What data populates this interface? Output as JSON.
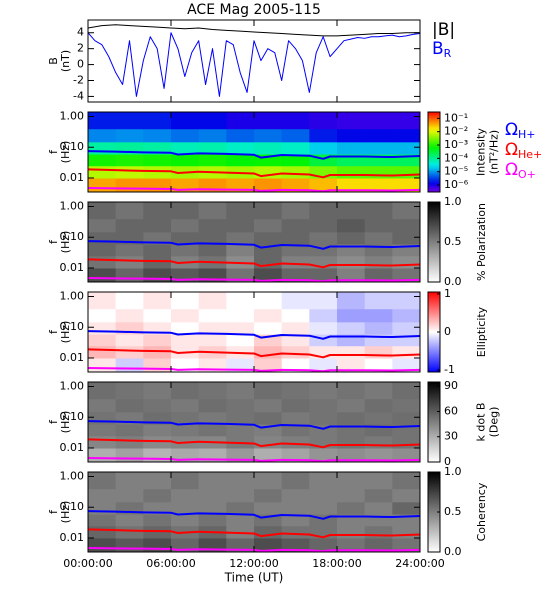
{
  "chart_data": [
    {
      "type": "line",
      "title": "ACE Mag 2005-115",
      "ylabel": [
        "B",
        "(nT)"
      ],
      "ylim": [
        -4.7,
        5.6
      ],
      "yticks": [
        -4,
        -2,
        0,
        2,
        4
      ],
      "series": [
        {
          "name": "|B|",
          "color": "#000000",
          "x": [
            0,
            1,
            2,
            3,
            4,
            5,
            6,
            7,
            8,
            9,
            10,
            11,
            12,
            13,
            14,
            15,
            16,
            17,
            18,
            19,
            20,
            21,
            22,
            23,
            24
          ],
          "values": [
            4.6,
            4.9,
            5.0,
            4.9,
            4.8,
            4.7,
            4.6,
            4.5,
            4.6,
            4.4,
            4.3,
            4.2,
            4.1,
            4.0,
            3.9,
            3.8,
            3.7,
            3.6,
            3.6,
            3.7,
            3.8,
            3.9,
            3.9,
            4.0,
            4.0
          ]
        },
        {
          "name": "B",
          "name_sub": "R",
          "color": "#0000ff",
          "x": [
            0,
            0.5,
            1,
            1.5,
            2,
            2.5,
            3,
            3.5,
            4,
            4.5,
            5,
            5.5,
            6,
            6.5,
            7,
            7.5,
            8,
            8.5,
            9,
            9.5,
            10,
            10.5,
            11,
            11.5,
            12,
            12.5,
            13,
            13.5,
            14,
            14.5,
            15,
            15.5,
            16,
            16.5,
            17,
            17.5,
            18,
            18.5,
            19,
            19.5,
            20,
            20.5,
            21,
            21.5,
            22,
            22.5,
            23,
            23.5,
            24
          ],
          "values": [
            4.0,
            3.0,
            2.5,
            1.0,
            -1.0,
            -2.5,
            3.0,
            -4.0,
            0.5,
            3.5,
            2.0,
            -3.0,
            4.0,
            2.0,
            -1.5,
            1.5,
            3.0,
            -2.5,
            2.0,
            -4.0,
            3.0,
            2.5,
            -1.0,
            -3.5,
            3.0,
            0.5,
            2.0,
            1.5,
            -2.0,
            3.0,
            2.0,
            0.5,
            -3.5,
            1.5,
            3.5,
            1.0,
            2.0,
            3.0,
            3.2,
            3.4,
            3.3,
            3.5,
            3.5,
            3.6,
            3.7,
            3.5,
            3.6,
            3.8,
            3.9
          ]
        }
      ]
    },
    {
      "type": "spectrogram",
      "ylabel": [
        "f",
        "(Hz)"
      ],
      "ylog": true,
      "ylim": [
        0.0035,
        1.4
      ],
      "yticks": [
        {
          "value": 1,
          "label": "1.00"
        },
        {
          "value": 0.1,
          "label": "0.10"
        },
        0.01
      ],
      "time_bins": [
        0,
        2,
        4,
        6,
        8,
        10,
        12,
        14,
        16,
        18,
        20,
        22,
        24
      ],
      "freq_bins": [
        0.0035,
        0.01,
        0.025,
        0.06,
        0.15,
        0.4,
        1.4
      ],
      "colormap": "rainbow",
      "zlog": true,
      "zlim": [
        3e-07,
        0.3
      ],
      "zticks": [
        {
          "value": 0.1,
          "label": "10⁻¹"
        },
        {
          "value": 0.01,
          "label": "10⁻²"
        },
        {
          "value": 0.001,
          "label": "10⁻³"
        },
        {
          "value": 0.0001,
          "label": "10⁻⁴"
        },
        {
          "value": 1e-05,
          "label": "10⁻⁵"
        },
        {
          "value": 1e-06,
          "label": "10⁻⁶"
        }
      ],
      "zlabel": [
        "Intensity",
        "(nT²/Hz)"
      ],
      "z": [
        [
          0.04,
          0.05,
          0.05,
          0.04,
          0.05,
          0.04,
          0.05,
          0.04,
          0.03,
          0.02,
          0.02,
          0.02
        ],
        [
          0.006,
          0.007,
          0.006,
          0.005,
          0.006,
          0.005,
          0.006,
          0.005,
          0.003,
          0.002,
          0.002,
          0.002
        ],
        [
          0.0008,
          0.0009,
          0.0008,
          0.0007,
          0.0008,
          0.0006,
          0.0007,
          0.0006,
          0.0003,
          0.0002,
          0.0002,
          0.0002
        ],
        [
          8e-05,
          9e-05,
          8e-05,
          6e-05,
          7e-05,
          5e-05,
          6e-05,
          5e-05,
          2e-05,
          1.5e-05,
          1.5e-05,
          1.5e-05
        ],
        [
          8e-06,
          9e-06,
          8e-06,
          6e-06,
          7e-06,
          5e-06,
          6e-06,
          5e-06,
          2e-06,
          1.5e-06,
          1.5e-06,
          1.5e-06
        ],
        [
          2e-06,
          2e-06,
          2e-06,
          1.5e-06,
          1.5e-06,
          1e-06,
          1e-06,
          1e-06,
          8e-07,
          7e-07,
          7e-07,
          7e-07
        ]
      ],
      "series": [
        {
          "name": "Ω",
          "name_sub": "H+",
          "color": "#0000ff",
          "x": [
            0,
            2,
            4,
            6,
            6.5,
            8,
            10,
            12,
            12.5,
            14,
            16,
            17,
            17.5,
            18,
            20,
            22,
            24
          ],
          "values": [
            0.075,
            0.072,
            0.068,
            0.066,
            0.058,
            0.063,
            0.061,
            0.057,
            0.046,
            0.056,
            0.053,
            0.042,
            0.05,
            0.05,
            0.05,
            0.048,
            0.052
          ]
        },
        {
          "name": "Ω",
          "name_sub": "He+",
          "color": "#ff0000",
          "x": [
            0,
            2,
            4,
            6,
            6.5,
            8,
            10,
            12,
            12.5,
            14,
            16,
            17,
            17.5,
            18,
            20,
            22,
            24
          ],
          "values": [
            0.019,
            0.018,
            0.017,
            0.0165,
            0.0145,
            0.016,
            0.015,
            0.014,
            0.0115,
            0.014,
            0.013,
            0.0105,
            0.0125,
            0.0125,
            0.0125,
            0.012,
            0.013
          ]
        },
        {
          "name": "Ω",
          "name_sub": "O+",
          "color": "#ff00ff",
          "x": [
            0,
            2,
            4,
            6,
            6.5,
            8,
            10,
            12,
            12.5,
            14,
            16,
            17,
            17.5,
            18,
            20,
            22,
            24
          ],
          "values": [
            0.0047,
            0.0046,
            0.0045,
            0.0044,
            0.0041,
            0.0043,
            0.0042,
            0.0041,
            0.0038,
            0.0041,
            0.004,
            0.0037,
            0.004,
            0.004,
            0.004,
            0.0039,
            0.0041
          ]
        }
      ]
    },
    {
      "type": "spectrogram",
      "ylabel": [
        "f",
        "(Hz)"
      ],
      "ylog": true,
      "ylim": [
        0.0035,
        1.4
      ],
      "yticks": [
        {
          "value": 1,
          "label": "1.00"
        },
        {
          "value": 0.1,
          "label": "0.10"
        },
        0.01
      ],
      "time_bins": [
        0,
        2,
        4,
        6,
        8,
        10,
        12,
        14,
        16,
        18,
        20,
        22,
        24
      ],
      "freq_bins": [
        0.0035,
        0.01,
        0.025,
        0.06,
        0.15,
        0.4,
        1.4
      ],
      "colormap": "gray",
      "zlim": [
        0,
        1
      ],
      "zticks": [
        {
          "value": 0,
          "label": "0.0"
        },
        0.5,
        {
          "value": 1,
          "label": "1.0"
        }
      ],
      "zlabel": [
        "% Polarization"
      ],
      "z": [
        [
          0.7,
          0.6,
          0.7,
          0.65,
          0.7,
          0.55,
          0.7,
          0.6,
          0.6,
          0.5,
          0.6,
          0.55
        ],
        [
          0.55,
          0.5,
          0.6,
          0.5,
          0.55,
          0.45,
          0.6,
          0.5,
          0.5,
          0.45,
          0.5,
          0.45
        ],
        [
          0.6,
          0.55,
          0.6,
          0.55,
          0.6,
          0.5,
          0.6,
          0.55,
          0.55,
          0.5,
          0.55,
          0.5
        ],
        [
          0.6,
          0.6,
          0.55,
          0.6,
          0.6,
          0.55,
          0.6,
          0.6,
          0.55,
          0.6,
          0.55,
          0.6
        ],
        [
          0.55,
          0.6,
          0.6,
          0.55,
          0.6,
          0.6,
          0.55,
          0.6,
          0.6,
          0.65,
          0.6,
          0.6
        ],
        [
          0.6,
          0.55,
          0.6,
          0.6,
          0.55,
          0.6,
          0.6,
          0.55,
          0.6,
          0.6,
          0.6,
          0.55
        ]
      ]
    },
    {
      "type": "spectrogram",
      "ylabel": [
        "f",
        "(Hz)"
      ],
      "ylog": true,
      "ylim": [
        0.0035,
        1.4
      ],
      "yticks": [
        {
          "value": 1,
          "label": "1.00"
        },
        {
          "value": 0.1,
          "label": "0.10"
        },
        0.01
      ],
      "time_bins": [
        0,
        2,
        4,
        6,
        8,
        10,
        12,
        14,
        16,
        18,
        20,
        22,
        24
      ],
      "freq_bins": [
        0.0035,
        0.01,
        0.025,
        0.06,
        0.15,
        0.4,
        1.4
      ],
      "colormap": "bwr",
      "zlim": [
        -1.05,
        1.05
      ],
      "zticks": [
        -1,
        0,
        1
      ],
      "zlabel": [
        "Ellipticity"
      ],
      "z": [
        [
          0.1,
          -0.2,
          0.2,
          0.0,
          0.1,
          -0.1,
          0.2,
          0.0,
          -0.1,
          0.1,
          0.0,
          -0.1
        ],
        [
          0.3,
          0.2,
          0.3,
          0.1,
          0.2,
          0.1,
          0.3,
          0.2,
          0.1,
          0.1,
          0.2,
          0.1
        ],
        [
          0.2,
          0.1,
          0.2,
          0.1,
          0.1,
          0.0,
          0.2,
          0.1,
          -0.2,
          -0.3,
          -0.2,
          -0.2
        ],
        [
          0.1,
          0.2,
          0.1,
          0.0,
          0.1,
          0.1,
          0.0,
          0.1,
          -0.1,
          -0.2,
          -0.3,
          -0.2
        ],
        [
          0.0,
          0.1,
          0.0,
          0.1,
          0.0,
          0.0,
          0.1,
          0.0,
          -0.2,
          -0.4,
          -0.4,
          -0.3
        ],
        [
          0.1,
          0.0,
          0.1,
          0.0,
          0.1,
          0.0,
          0.0,
          -0.1,
          -0.1,
          -0.3,
          -0.2,
          -0.2
        ]
      ]
    },
    {
      "type": "spectrogram",
      "ylabel": [
        "f",
        "(Hz)"
      ],
      "ylog": true,
      "ylim": [
        0.0035,
        1.4
      ],
      "yticks": [
        {
          "value": 1,
          "label": "1.00"
        },
        {
          "value": 0.1,
          "label": "0.10"
        },
        0.01
      ],
      "time_bins": [
        0,
        2,
        4,
        6,
        8,
        10,
        12,
        14,
        16,
        18,
        20,
        22,
        24
      ],
      "freq_bins": [
        0.0035,
        0.01,
        0.025,
        0.06,
        0.15,
        0.4,
        1.4
      ],
      "colormap": "gray",
      "zlim": [
        0,
        95
      ],
      "zticks": [
        0,
        30,
        60,
        90
      ],
      "zlabel": [
        "k dot B",
        "(Deg)"
      ],
      "z": [
        [
          30,
          35,
          28,
          32,
          30,
          38,
          30,
          34,
          40,
          42,
          40,
          42
        ],
        [
          45,
          48,
          44,
          46,
          45,
          50,
          46,
          48,
          50,
          52,
          50,
          52
        ],
        [
          50,
          52,
          48,
          50,
          52,
          50,
          48,
          52,
          50,
          52,
          54,
          52
        ],
        [
          52,
          50,
          54,
          52,
          50,
          52,
          54,
          50,
          52,
          54,
          52,
          54
        ],
        [
          50,
          54,
          52,
          50,
          54,
          52,
          50,
          54,
          52,
          50,
          54,
          52
        ],
        [
          54,
          52,
          50,
          54,
          52,
          50,
          54,
          52,
          50,
          52,
          50,
          54
        ]
      ]
    },
    {
      "type": "spectrogram",
      "ylabel": [
        "f",
        "(Hz)"
      ],
      "ylog": true,
      "ylim": [
        0.0035,
        1.4
      ],
      "yticks": [
        {
          "value": 1,
          "label": "1.00"
        },
        {
          "value": 0.1,
          "label": "0.10"
        },
        0.01
      ],
      "time_bins": [
        0,
        2,
        4,
        6,
        8,
        10,
        12,
        14,
        16,
        18,
        20,
        22,
        24
      ],
      "freq_bins": [
        0.0035,
        0.01,
        0.025,
        0.06,
        0.15,
        0.4,
        1.4
      ],
      "colormap": "gray",
      "zlim": [
        0,
        1
      ],
      "zticks": [
        {
          "value": 0,
          "label": "0.0"
        },
        0.5,
        {
          "value": 1,
          "label": "1.0"
        }
      ],
      "zlabel": [
        "Coherency"
      ],
      "z": [
        [
          0.7,
          0.65,
          0.7,
          0.6,
          0.7,
          0.6,
          0.7,
          0.65,
          0.6,
          0.55,
          0.6,
          0.55
        ],
        [
          0.6,
          0.55,
          0.6,
          0.55,
          0.6,
          0.5,
          0.6,
          0.55,
          0.55,
          0.5,
          0.55,
          0.5
        ],
        [
          0.55,
          0.5,
          0.55,
          0.5,
          0.55,
          0.5,
          0.55,
          0.5,
          0.55,
          0.5,
          0.5,
          0.5
        ],
        [
          0.5,
          0.55,
          0.5,
          0.5,
          0.5,
          0.55,
          0.5,
          0.5,
          0.5,
          0.55,
          0.5,
          0.6
        ],
        [
          0.5,
          0.5,
          0.55,
          0.5,
          0.5,
          0.5,
          0.55,
          0.5,
          0.5,
          0.5,
          0.55,
          0.5
        ],
        [
          0.55,
          0.5,
          0.5,
          0.55,
          0.5,
          0.5,
          0.5,
          0.55,
          0.5,
          0.5,
          0.5,
          0.55
        ]
      ],
      "xlim": [
        0,
        24
      ],
      "xticks": [
        {
          "value": 0,
          "label": "00:00:00"
        },
        {
          "value": 6,
          "label": "06:00:00"
        },
        {
          "value": 12,
          "label": "12:00:00"
        },
        {
          "value": 18,
          "label": "18:00:00"
        },
        {
          "value": 24,
          "label": "24:00:00"
        }
      ],
      "xlabel": "Time (UT)"
    }
  ]
}
